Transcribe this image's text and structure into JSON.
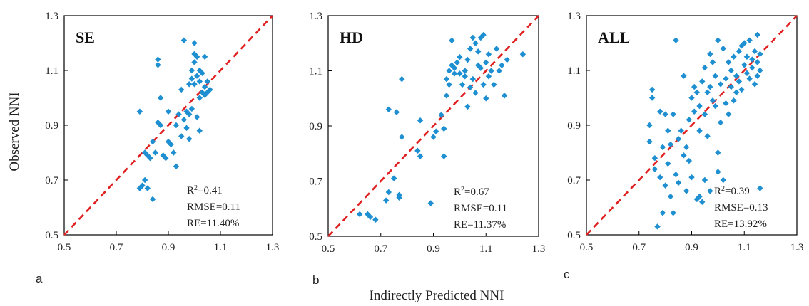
{
  "figure": {
    "ylabel": "Observed NNI",
    "xlabel": "Indirectly Predicted NNI"
  },
  "colors": {
    "points": "#1e8fd0",
    "line": "#e02020",
    "frame": "#000000"
  },
  "chart_data": [
    {
      "type": "scatter",
      "panel_letter": "a",
      "title": "SE",
      "stats": {
        "r2": "R2=0.41",
        "r2_prefix": "R",
        "r2_sup": "2",
        "r2_value": "=0.41",
        "rmse": "RMSE=0.11",
        "re": "RE=11.40%"
      },
      "xlim": [
        0.5,
        1.3
      ],
      "ylim": [
        0.5,
        1.3
      ],
      "xticks": [
        "0.5",
        "0.7",
        "0.9",
        "1.1",
        "1.3"
      ],
      "yticks": [
        "0.5",
        "0.7",
        "0.9",
        "1.1",
        "1.3"
      ],
      "reference_line": "1:1 dashed",
      "points": [
        [
          0.79,
          0.95
        ],
        [
          0.8,
          0.68
        ],
        [
          0.79,
          0.67
        ],
        [
          0.81,
          0.7
        ],
        [
          0.82,
          0.67
        ],
        [
          0.81,
          0.8
        ],
        [
          0.82,
          0.79
        ],
        [
          0.83,
          0.78
        ],
        [
          0.84,
          0.63
        ],
        [
          0.84,
          0.84
        ],
        [
          0.85,
          0.8
        ],
        [
          0.86,
          0.91
        ],
        [
          0.86,
          1.14
        ],
        [
          0.86,
          1.12
        ],
        [
          0.87,
          1.0
        ],
        [
          0.87,
          0.9
        ],
        [
          0.88,
          0.79
        ],
        [
          0.89,
          0.78
        ],
        [
          0.9,
          0.95
        ],
        [
          0.9,
          0.84
        ],
        [
          0.91,
          0.83
        ],
        [
          0.92,
          0.8
        ],
        [
          0.93,
          0.75
        ],
        [
          0.93,
          0.9
        ],
        [
          0.94,
          0.94
        ],
        [
          0.95,
          0.86
        ],
        [
          0.95,
          1.03
        ],
        [
          0.96,
          1.21
        ],
        [
          0.96,
          0.92
        ],
        [
          0.97,
          0.95
        ],
        [
          0.97,
          0.89
        ],
        [
          0.98,
          0.94
        ],
        [
          0.98,
          1.05
        ],
        [
          0.99,
          1.1
        ],
        [
          0.99,
          0.96
        ],
        [
          0.99,
          1.07
        ],
        [
          1.0,
          1.13
        ],
        [
          1.0,
          1.2
        ],
        [
          1.0,
          1.16
        ],
        [
          1.01,
          0.93
        ],
        [
          1.01,
          1.08
        ],
        [
          1.02,
          1.06
        ],
        [
          1.02,
          1.0
        ],
        [
          1.02,
          0.88
        ],
        [
          1.02,
          1.1
        ],
        [
          1.03,
          1.09
        ],
        [
          1.03,
          1.02
        ],
        [
          1.04,
          1.15
        ],
        [
          1.04,
          1.04
        ],
        [
          1.04,
          1.01
        ],
        [
          1.05,
          1.02
        ],
        [
          1.05,
          1.06
        ],
        [
          1.06,
          1.03
        ],
        [
          1.0,
          1.05
        ],
        [
          0.98,
          0.85
        ],
        [
          1.01,
          1.15
        ]
      ]
    },
    {
      "type": "scatter",
      "panel_letter": "b",
      "title": "HD",
      "stats": {
        "r2": "R2=0.67",
        "r2_prefix": "R",
        "r2_sup": "2",
        "r2_value": "=0.67",
        "rmse": "RMSE=0.11",
        "re": "RE=11.37%"
      },
      "xlim": [
        0.5,
        1.3
      ],
      "ylim": [
        0.5,
        1.3
      ],
      "xticks": [
        "0.5",
        "0.7",
        "0.9",
        "1.1",
        "1.3"
      ],
      "yticks": [
        "0.5",
        "0.7",
        "0.9",
        "1.1",
        "1.3"
      ],
      "reference_line": "1:1 dashed",
      "points": [
        [
          0.62,
          0.58
        ],
        [
          0.65,
          0.58
        ],
        [
          0.66,
          0.57
        ],
        [
          0.68,
          0.56
        ],
        [
          0.72,
          0.63
        ],
        [
          0.73,
          0.66
        ],
        [
          0.73,
          0.96
        ],
        [
          0.75,
          0.71
        ],
        [
          0.76,
          0.95
        ],
        [
          0.77,
          0.65
        ],
        [
          0.77,
          0.64
        ],
        [
          0.78,
          1.07
        ],
        [
          0.78,
          0.86
        ],
        [
          0.84,
          0.81
        ],
        [
          0.85,
          0.79
        ],
        [
          0.85,
          0.92
        ],
        [
          0.89,
          0.62
        ],
        [
          0.9,
          0.86
        ],
        [
          0.91,
          0.88
        ],
        [
          0.93,
          0.94
        ],
        [
          0.94,
          0.79
        ],
        [
          0.94,
          0.89
        ],
        [
          0.95,
          1.01
        ],
        [
          0.95,
          1.07
        ],
        [
          0.96,
          1.05
        ],
        [
          0.96,
          1.1
        ],
        [
          0.97,
          1.12
        ],
        [
          0.97,
          1.21
        ],
        [
          0.98,
          1.09
        ],
        [
          0.98,
          1.11
        ],
        [
          0.99,
          1.13
        ],
        [
          1.0,
          1.15
        ],
        [
          1.01,
          1.05
        ],
        [
          1.02,
          1.08
        ],
        [
          1.02,
          1.1
        ],
        [
          1.03,
          1.14
        ],
        [
          1.03,
          0.97
        ],
        [
          1.04,
          1.18
        ],
        [
          1.04,
          1.04
        ],
        [
          1.05,
          1.22
        ],
        [
          1.05,
          1.07
        ],
        [
          1.06,
          1.2
        ],
        [
          1.06,
          1.02
        ],
        [
          1.07,
          1.17
        ],
        [
          1.08,
          1.11
        ],
        [
          1.08,
          1.22
        ],
        [
          1.09,
          1.23
        ],
        [
          1.09,
          1.05
        ],
        [
          1.1,
          1.0
        ],
        [
          1.1,
          1.13
        ],
        [
          1.11,
          1.16
        ],
        [
          1.11,
          1.08
        ],
        [
          1.12,
          1.1
        ],
        [
          1.13,
          1.05
        ],
        [
          1.14,
          1.18
        ],
        [
          1.15,
          1.1
        ],
        [
          1.16,
          1.12
        ],
        [
          1.17,
          1.01
        ],
        [
          1.18,
          1.14
        ],
        [
          1.24,
          1.16
        ],
        [
          1.0,
          1.09
        ],
        [
          1.07,
          1.12
        ]
      ]
    },
    {
      "type": "scatter",
      "panel_letter": "c",
      "title": "ALL",
      "stats": {
        "r2": "R2=0.39",
        "r2_prefix": "R",
        "r2_sup": "2",
        "r2_value": "=0.39",
        "rmse": "RMSE=0.13",
        "re": "RE=13.92%"
      },
      "xlim": [
        0.5,
        1.3
      ],
      "ylim": [
        0.5,
        1.3
      ],
      "xticks": [
        "0.5",
        "0.7",
        "0.9",
        "1.1",
        "1.3"
      ],
      "yticks": [
        "0.5",
        "0.7",
        "0.9",
        "1.1",
        "1.3"
      ],
      "reference_line": "1:1 dashed",
      "points": [
        [
          0.74,
          0.9
        ],
        [
          0.74,
          0.84
        ],
        [
          0.75,
          1.03
        ],
        [
          0.75,
          1.0
        ],
        [
          0.76,
          0.78
        ],
        [
          0.76,
          0.74
        ],
        [
          0.77,
          0.53
        ],
        [
          0.78,
          0.95
        ],
        [
          0.78,
          0.71
        ],
        [
          0.79,
          0.58
        ],
        [
          0.79,
          0.82
        ],
        [
          0.8,
          0.94
        ],
        [
          0.8,
          0.68
        ],
        [
          0.81,
          0.76
        ],
        [
          0.81,
          0.88
        ],
        [
          0.82,
          0.64
        ],
        [
          0.82,
          0.83
        ],
        [
          0.83,
          0.94
        ],
        [
          0.83,
          0.58
        ],
        [
          0.84,
          1.21
        ],
        [
          0.84,
          0.72
        ],
        [
          0.85,
          0.85
        ],
        [
          0.85,
          0.69
        ],
        [
          0.86,
          0.88
        ],
        [
          0.87,
          1.08
        ],
        [
          0.87,
          0.79
        ],
        [
          0.88,
          0.66
        ],
        [
          0.88,
          0.82
        ],
        [
          0.89,
          0.92
        ],
        [
          0.89,
          0.77
        ],
        [
          0.9,
          1.0
        ],
        [
          0.9,
          0.71
        ],
        [
          0.91,
          1.04
        ],
        [
          0.91,
          0.95
        ],
        [
          0.92,
          0.63
        ],
        [
          0.92,
          1.02
        ],
        [
          0.93,
          0.88
        ],
        [
          0.93,
          0.97
        ],
        [
          0.94,
          0.62
        ],
        [
          0.94,
          1.06
        ],
        [
          0.95,
          0.94
        ],
        [
          0.95,
          1.11
        ],
        [
          0.96,
          1.02
        ],
        [
          0.96,
          0.86
        ],
        [
          0.97,
          1.16
        ],
        [
          0.97,
          1.04
        ],
        [
          0.98,
          0.99
        ],
        [
          0.98,
          1.13
        ],
        [
          0.99,
          0.97
        ],
        [
          0.99,
          1.08
        ],
        [
          1.0,
          0.8
        ],
        [
          1.0,
          1.21
        ],
        [
          1.0,
          0.73
        ],
        [
          1.01,
          1.05
        ],
        [
          1.01,
          0.91
        ],
        [
          1.02,
          1.18
        ],
        [
          1.02,
          0.7
        ],
        [
          1.03,
          1.07
        ],
        [
          1.03,
          0.98
        ],
        [
          1.04,
          1.13
        ],
        [
          1.04,
          0.94
        ],
        [
          1.05,
          1.04
        ],
        [
          1.05,
          1.1
        ],
        [
          1.06,
          0.99
        ],
        [
          1.06,
          1.15
        ],
        [
          1.07,
          1.02
        ],
        [
          1.07,
          1.08
        ],
        [
          1.08,
          1.17
        ],
        [
          1.08,
          1.06
        ],
        [
          1.09,
          1.19
        ],
        [
          1.09,
          1.03
        ],
        [
          1.1,
          1.12
        ],
        [
          1.1,
          1.2
        ],
        [
          1.11,
          1.09
        ],
        [
          1.11,
          1.15
        ],
        [
          1.12,
          1.21
        ],
        [
          1.12,
          1.07
        ],
        [
          1.13,
          1.11
        ],
        [
          1.13,
          1.14
        ],
        [
          1.14,
          1.17
        ],
        [
          1.14,
          1.05
        ],
        [
          1.15,
          1.13
        ],
        [
          1.15,
          1.23
        ],
        [
          1.15,
          1.08
        ],
        [
          1.16,
          1.1
        ],
        [
          1.16,
          0.67
        ],
        [
          1.16,
          1.16
        ],
        [
          0.97,
          0.66
        ],
        [
          0.93,
          0.64
        ],
        [
          0.95,
          0.7
        ]
      ]
    }
  ]
}
